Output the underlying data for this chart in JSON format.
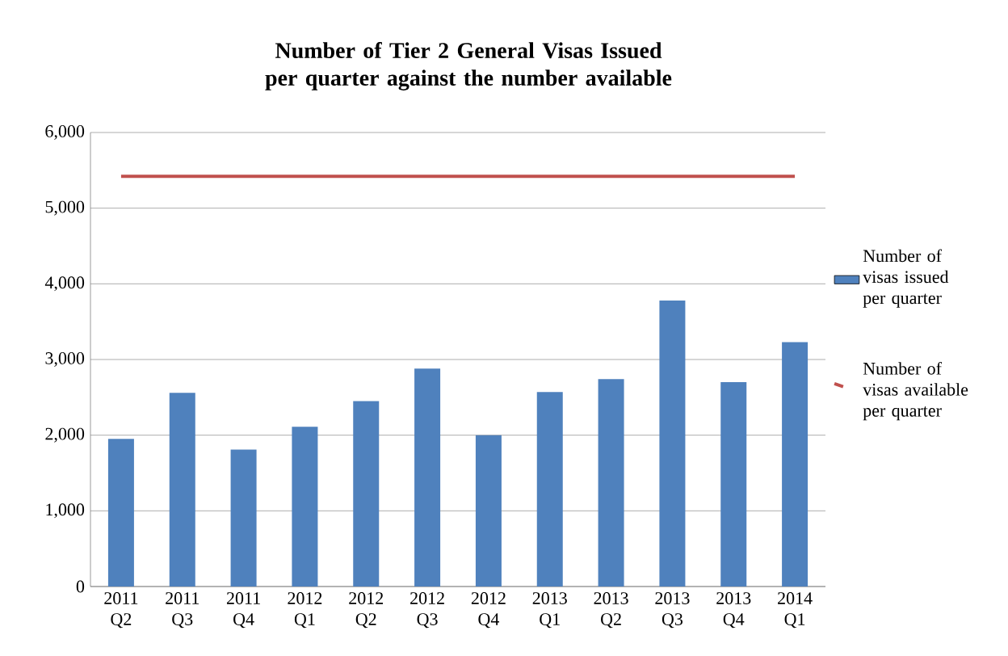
{
  "chart_data": {
    "type": "bar",
    "title": "Number of Tier 2 General Visas Issued per quarter against the number available",
    "categories": [
      "2011 Q2",
      "2011 Q3",
      "2011 Q4",
      "2012 Q1",
      "2012 Q2",
      "2012 Q3",
      "2012 Q4",
      "2013 Q1",
      "2013 Q2",
      "2013 Q3",
      "2013 Q4",
      "2014 Q1"
    ],
    "series": [
      {
        "name": "Number of visas issued per quarter",
        "type": "bar",
        "color": "#4f81bd",
        "values": [
          1950,
          2560,
          1810,
          2110,
          2450,
          2880,
          2000,
          2570,
          2740,
          3780,
          2700,
          3230
        ]
      },
      {
        "name": "Number of visas available per quarter",
        "type": "line",
        "color": "#c0504d",
        "values": [
          5420,
          5420,
          5420,
          5420,
          5420,
          5420,
          5420,
          5420,
          5420,
          5420,
          5420,
          5420
        ]
      }
    ],
    "ylim": [
      0,
      6000
    ],
    "yticks": [
      {
        "value": 0,
        "label": "0"
      },
      {
        "value": 1000,
        "label": "1,000"
      },
      {
        "value": 2000,
        "label": "2,000"
      },
      {
        "value": 3000,
        "label": "3,000"
      },
      {
        "value": 4000,
        "label": "4,000"
      },
      {
        "value": 5000,
        "label": "5,000"
      },
      {
        "value": 6000,
        "label": "6,000"
      }
    ],
    "grid": "y",
    "legend": "right",
    "marker": "none"
  }
}
